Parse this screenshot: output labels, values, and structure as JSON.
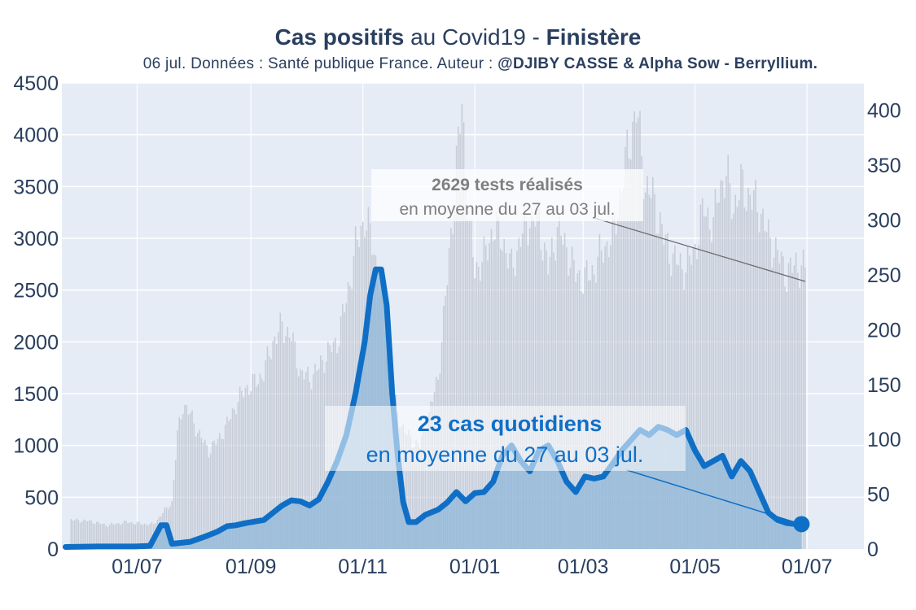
{
  "title": {
    "part1": "Cas positifs",
    "part2": " au Covid19 - ",
    "part3": "Finistère"
  },
  "subtitle": {
    "text": "06 jul. Données : Santé publique France. Auteur : ",
    "author": "@DJIBY CASSE & Alpha Sow - Berryllium."
  },
  "colors": {
    "plot_bg": "#e5ecf6",
    "grid": "#ffffff",
    "tests_bar": "#c2c8d2",
    "cases_line": "#0f6fc6",
    "cases_fill": "#8fb7d9",
    "text": "#2a3f5f",
    "tests_annotation": "#7f7f7f"
  },
  "annotations": {
    "tests_bold": "2629 tests réalisés",
    "tests_sub": "en moyenne du 27 au 03 jul.",
    "cases_bold": "23 cas quotidiens",
    "cases_sub": "en moyenne du 27 au 03 jul."
  },
  "chart_data": {
    "type": "line",
    "x_tick_labels": [
      "01/07",
      "01/09",
      "01/11",
      "01/01",
      "01/03",
      "01/05",
      "01/07"
    ],
    "x_tick_days": [
      41,
      103,
      164,
      225,
      284,
      345,
      406
    ],
    "xlim_days": [
      0,
      437
    ],
    "y_left_ticks": [
      0,
      500,
      1000,
      1500,
      2000,
      2500,
      3000,
      3500,
      4000,
      4500
    ],
    "y_left_range": [
      0,
      4500
    ],
    "y_right_ticks": [
      0,
      50,
      100,
      150,
      200,
      250,
      300,
      350,
      400
    ],
    "y_right_range": [
      0,
      425
    ],
    "grid": true,
    "series": [
      {
        "axis": "left",
        "style": "bars",
        "points": [
          [
            5,
            280
          ],
          [
            15,
            270
          ],
          [
            25,
            230
          ],
          [
            35,
            260
          ],
          [
            45,
            240
          ],
          [
            50,
            240
          ],
          [
            55,
            350
          ],
          [
            60,
            450
          ],
          [
            63,
            1100
          ],
          [
            66,
            1400
          ],
          [
            70,
            1300
          ],
          [
            75,
            1100
          ],
          [
            80,
            950
          ],
          [
            85,
            1050
          ],
          [
            90,
            1200
          ],
          [
            95,
            1400
          ],
          [
            100,
            1550
          ],
          [
            105,
            1600
          ],
          [
            110,
            1700
          ],
          [
            115,
            2000
          ],
          [
            120,
            2150
          ],
          [
            125,
            2050
          ],
          [
            130,
            1700
          ],
          [
            135,
            1650
          ],
          [
            140,
            1750
          ],
          [
            145,
            1900
          ],
          [
            150,
            2000
          ],
          [
            155,
            2400
          ],
          [
            160,
            2900
          ],
          [
            165,
            3200
          ],
          [
            170,
            2900
          ],
          [
            175,
            2300
          ],
          [
            180,
            1500
          ],
          [
            185,
            1200
          ],
          [
            190,
            1050
          ],
          [
            195,
            1000
          ],
          [
            200,
            1300
          ],
          [
            205,
            1650
          ],
          [
            210,
            2600
          ],
          [
            215,
            3700
          ],
          [
            218,
            4300
          ],
          [
            222,
            3100
          ],
          [
            225,
            2700
          ],
          [
            230,
            2800
          ],
          [
            235,
            3100
          ],
          [
            240,
            3000
          ],
          [
            245,
            2700
          ],
          [
            250,
            3000
          ],
          [
            255,
            3200
          ],
          [
            260,
            3150
          ],
          [
            265,
            2700
          ],
          [
            270,
            3100
          ],
          [
            275,
            2900
          ],
          [
            280,
            2650
          ],
          [
            285,
            2600
          ],
          [
            290,
            2700
          ],
          [
            295,
            2900
          ],
          [
            300,
            3000
          ],
          [
            305,
            3500
          ],
          [
            310,
            4000
          ],
          [
            313,
            4250
          ],
          [
            318,
            3500
          ],
          [
            322,
            3400
          ],
          [
            328,
            3000
          ],
          [
            333,
            2800
          ],
          [
            340,
            2700
          ],
          [
            345,
            2900
          ],
          [
            350,
            3300
          ],
          [
            355,
            3100
          ],
          [
            358,
            3500
          ],
          [
            362,
            3600
          ],
          [
            366,
            3300
          ],
          [
            370,
            3500
          ],
          [
            375,
            3400
          ],
          [
            380,
            3300
          ],
          [
            385,
            3000
          ],
          [
            390,
            2850
          ],
          [
            395,
            2650
          ],
          [
            400,
            2750
          ],
          [
            405,
            2700
          ]
        ]
      },
      {
        "axis": "left",
        "style": "line",
        "points": [
          [
            2,
            20
          ],
          [
            20,
            25
          ],
          [
            40,
            25
          ],
          [
            48,
            30
          ],
          [
            54,
            230
          ],
          [
            57,
            230
          ],
          [
            60,
            50
          ],
          [
            70,
            70
          ],
          [
            78,
            120
          ],
          [
            85,
            170
          ],
          [
            90,
            220
          ],
          [
            95,
            230
          ],
          [
            100,
            250
          ],
          [
            110,
            280
          ],
          [
            115,
            350
          ],
          [
            120,
            420
          ],
          [
            125,
            470
          ],
          [
            130,
            460
          ],
          [
            135,
            420
          ],
          [
            140,
            480
          ],
          [
            145,
            650
          ],
          [
            150,
            850
          ],
          [
            155,
            1100
          ],
          [
            160,
            1500
          ],
          [
            165,
            2000
          ],
          [
            168,
            2450
          ],
          [
            171,
            2700
          ],
          [
            174,
            2700
          ],
          [
            177,
            2350
          ],
          [
            180,
            1500
          ],
          [
            183,
            900
          ],
          [
            186,
            450
          ],
          [
            189,
            260
          ],
          [
            193,
            260
          ],
          [
            198,
            330
          ],
          [
            205,
            380
          ],
          [
            210,
            450
          ],
          [
            215,
            550
          ],
          [
            220,
            460
          ],
          [
            225,
            540
          ],
          [
            230,
            550
          ],
          [
            235,
            650
          ],
          [
            240,
            900
          ],
          [
            245,
            1000
          ],
          [
            250,
            850
          ],
          [
            255,
            750
          ],
          [
            260,
            950
          ],
          [
            265,
            1000
          ],
          [
            270,
            850
          ],
          [
            275,
            650
          ],
          [
            280,
            550
          ],
          [
            285,
            700
          ],
          [
            290,
            680
          ],
          [
            295,
            700
          ],
          [
            300,
            820
          ],
          [
            305,
            950
          ],
          [
            310,
            1050
          ],
          [
            315,
            1150
          ],
          [
            320,
            1100
          ],
          [
            325,
            1180
          ],
          [
            330,
            1150
          ],
          [
            335,
            1100
          ],
          [
            340,
            1150
          ],
          [
            345,
            950
          ],
          [
            350,
            800
          ],
          [
            355,
            850
          ],
          [
            360,
            900
          ],
          [
            365,
            700
          ],
          [
            370,
            850
          ],
          [
            375,
            750
          ],
          [
            380,
            550
          ],
          [
            385,
            350
          ],
          [
            390,
            280
          ],
          [
            395,
            250
          ],
          [
            400,
            240
          ],
          [
            403,
            240
          ]
        ]
      }
    ]
  }
}
